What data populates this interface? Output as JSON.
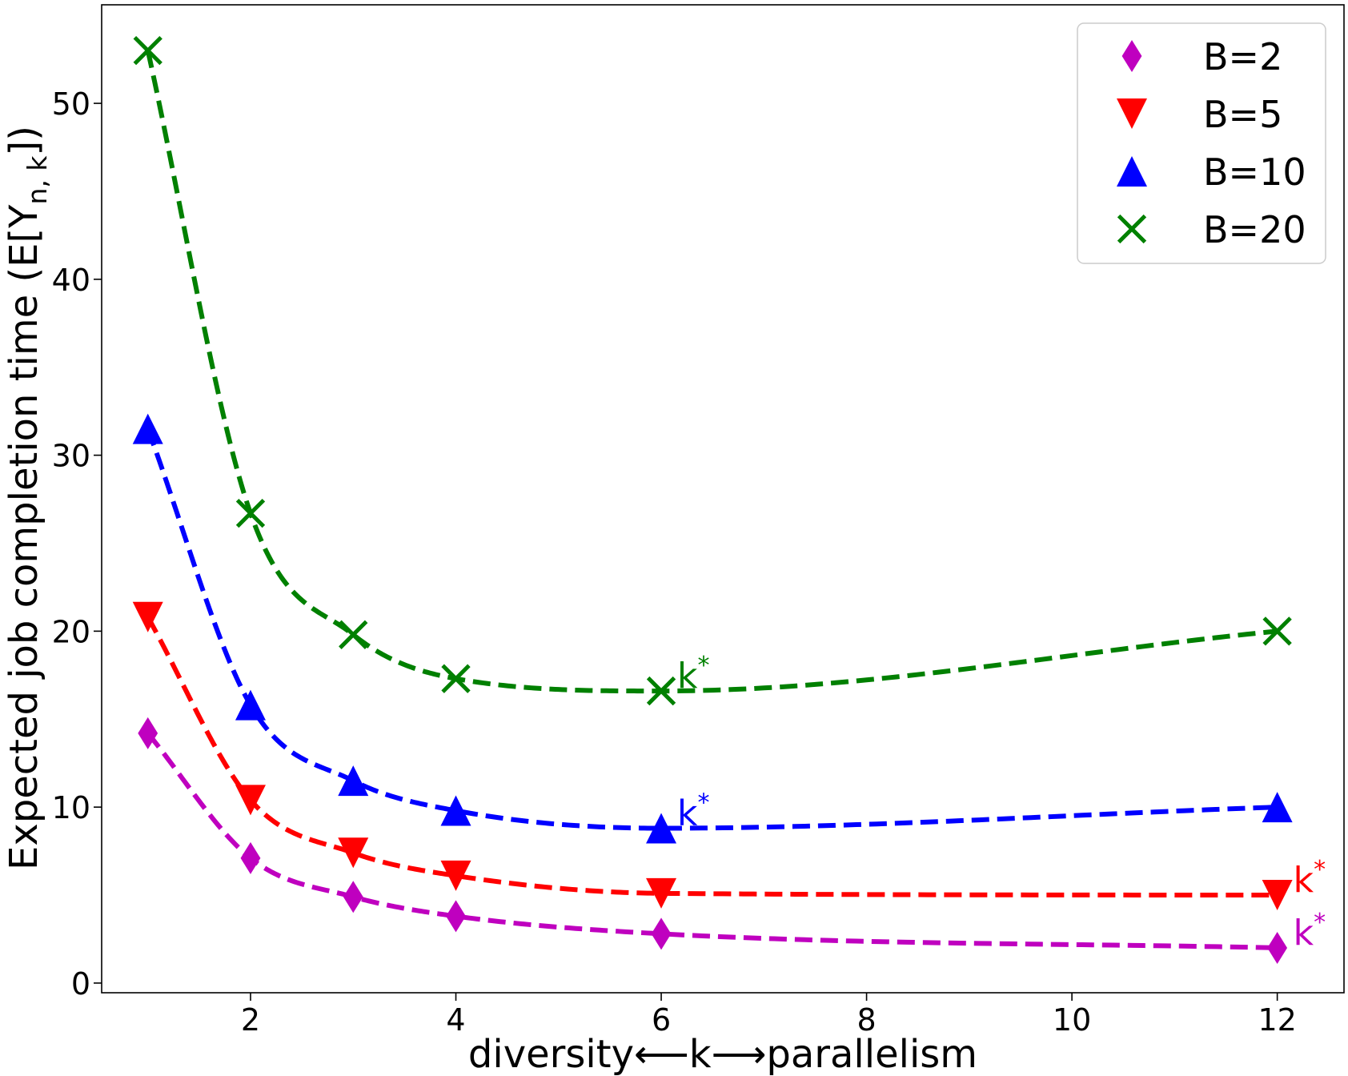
{
  "chart_data": {
    "type": "line",
    "title": "",
    "xlabel": "diversity⟵k⟶parallelism",
    "ylabel": "Expected job completion time (E[Y",
    "ylabel_sub": "n, k",
    "ylabel_end": "])",
    "xlim": [
      0.55,
      12.65
    ],
    "ylim": [
      -0.55,
      55.6
    ],
    "xticks": [
      2,
      4,
      6,
      8,
      10,
      12
    ],
    "xtick_labels": [
      "2",
      "4",
      "6",
      "8",
      "10",
      "12"
    ],
    "yticks": [
      0,
      10,
      20,
      30,
      40,
      50
    ],
    "ytick_labels": [
      "0",
      "10",
      "20",
      "30",
      "40",
      "50"
    ],
    "grid": false,
    "legend_position": "top-right",
    "annotation_text": "k",
    "annotation_sup": "*",
    "series": [
      {
        "name": "B=2",
        "color": "#bf00bf",
        "marker": "diamond",
        "x": [
          1,
          2,
          3,
          4,
          6,
          12
        ],
        "y": [
          14.2,
          7.1,
          4.9,
          3.8,
          2.8,
          2.0
        ],
        "optimal_k": 12
      },
      {
        "name": "B=5",
        "color": "#ff0000",
        "marker": "triangle-down",
        "x": [
          1,
          2,
          3,
          4,
          6,
          12
        ],
        "y": [
          20.8,
          10.4,
          7.4,
          6.1,
          5.1,
          5.0
        ],
        "optimal_k": 12
      },
      {
        "name": "B=10",
        "color": "#0000ff",
        "marker": "triangle-up",
        "x": [
          1,
          2,
          3,
          4,
          6,
          12
        ],
        "y": [
          31.5,
          15.8,
          11.5,
          9.8,
          8.8,
          10.0
        ],
        "optimal_k": 6
      },
      {
        "name": "B=20",
        "color": "#008000",
        "marker": "x",
        "x": [
          1,
          2,
          3,
          4,
          6,
          12
        ],
        "y": [
          53.0,
          26.7,
          19.8,
          17.3,
          16.6,
          20.0
        ],
        "optimal_k": 6
      }
    ]
  }
}
